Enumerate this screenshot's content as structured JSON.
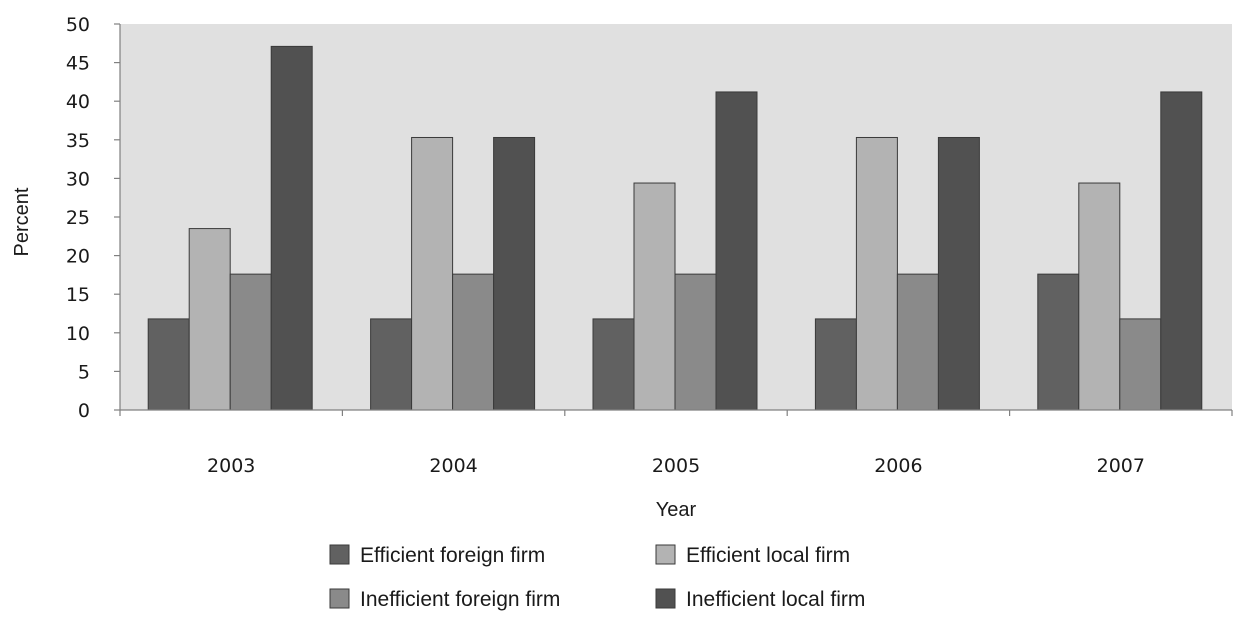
{
  "chart_data": {
    "type": "bar",
    "title": "",
    "xlabel": "Year",
    "ylabel": "Percent",
    "categories": [
      "2003",
      "2004",
      "2005",
      "2006",
      "2007"
    ],
    "ylim": [
      0,
      50
    ],
    "yticks": [
      0,
      5,
      10,
      15,
      20,
      25,
      30,
      35,
      40,
      45,
      50
    ],
    "grid": false,
    "legend_position": "bottom",
    "series": [
      {
        "name": "Efficient foreign firm",
        "values": [
          11.8,
          11.8,
          11.8,
          11.8,
          17.6
        ],
        "color": "#616161"
      },
      {
        "name": "Efficient local firm",
        "values": [
          23.5,
          35.3,
          29.4,
          35.3,
          29.4
        ],
        "color": "#b3b3b3"
      },
      {
        "name": "Inefficient foreign firm",
        "values": [
          17.6,
          17.6,
          17.6,
          17.6,
          11.8
        ],
        "color": "#8a8a8a"
      },
      {
        "name": "Inefficient local firm",
        "values": [
          47.1,
          35.3,
          41.2,
          35.3,
          41.2
        ],
        "color": "#515151"
      }
    ],
    "plot_background": "#e0e0e0"
  }
}
